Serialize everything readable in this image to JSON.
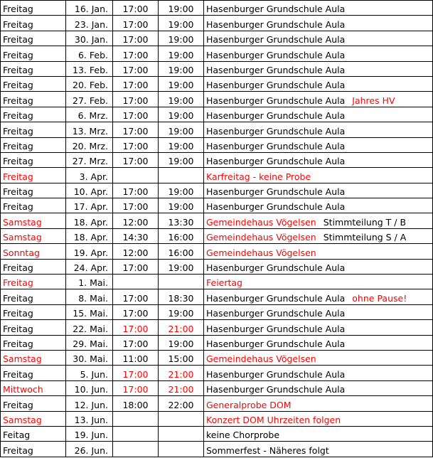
{
  "colors": {
    "highlight": "#ff0000",
    "text": "#000000",
    "border": "#000000"
  },
  "rows": [
    {
      "day": "Freitag",
      "date": "16. Jan.",
      "start": "17:00",
      "end": "19:00",
      "info": "Hasenburger Grundschule Aula"
    },
    {
      "day": "Freitag",
      "date": "23. Jan.",
      "start": "17:00",
      "end": "19:00",
      "info": "Hasenburger Grundschule Aula"
    },
    {
      "day": "Freitag",
      "date": "30. Jan.",
      "start": "17:00",
      "end": "19:00",
      "info": "Hasenburger Grundschule Aula"
    },
    {
      "day": "Freitag",
      "date": "6. Feb.",
      "start": "17:00",
      "end": "19:00",
      "info": "Hasenburger Grundschule Aula"
    },
    {
      "day": "Freitag",
      "date": "13. Feb.",
      "start": "17:00",
      "end": "19:00",
      "info": "Hasenburger Grundschule Aula"
    },
    {
      "day": "Freitag",
      "date": "20. Feb.",
      "start": "17:00",
      "end": "19:00",
      "info": "Hasenburger Grundschule Aula"
    },
    {
      "day": "Freitag",
      "date": "27. Feb.",
      "start": "17:00",
      "end": "19:00",
      "info": "Hasenburger Grundschule Aula",
      "note": "Jahres HV",
      "note_red": true
    },
    {
      "day": "Freitag",
      "date": "6. Mrz.",
      "start": "17:00",
      "end": "19:00",
      "info": "Hasenburger Grundschule Aula"
    },
    {
      "day": "Freitag",
      "date": "13. Mrz.",
      "start": "17:00",
      "end": "19:00",
      "info": "Hasenburger Grundschule Aula"
    },
    {
      "day": "Freitag",
      "date": "20. Mrz.",
      "start": "17:00",
      "end": "19:00",
      "info": "Hasenburger Grundschule Aula"
    },
    {
      "day": "Freitag",
      "date": "27. Mrz.",
      "start": "17:00",
      "end": "19:00",
      "info": "Hasenburger Grundschule Aula"
    },
    {
      "day": "Freitag",
      "day_red": true,
      "date": "3. Apr.",
      "start": "",
      "end": "",
      "info": "Karfreitag - keine Probe",
      "info_red": true
    },
    {
      "day": "Freitag",
      "date": "10. Apr.",
      "start": "17:00",
      "end": "19:00",
      "info": "Hasenburger Grundschule Aula"
    },
    {
      "day": "Freitag",
      "date": "17. Apr.",
      "start": "17:00",
      "end": "19:00",
      "info": "Hasenburger Grundschule Aula"
    },
    {
      "day": "Samstag",
      "day_red": true,
      "date": "18. Apr.",
      "start": "12:00",
      "end": "13:30",
      "info": "Gemeindehaus Vögelsen",
      "info_red": true,
      "note": "Stimmteilung  T / B"
    },
    {
      "day": "Samstag",
      "day_red": true,
      "date": "18. Apr.",
      "start": "14:30",
      "end": "16:00",
      "info": "Gemeindehaus Vögelsen",
      "info_red": true,
      "note": "Stimmteilung  S / A"
    },
    {
      "day": "Sonntag",
      "day_red": true,
      "date": "19. Apr.",
      "start": "12:00",
      "end": "16:00",
      "info": "Gemeindehaus Vögelsen",
      "info_red": true
    },
    {
      "day": "Freitag",
      "date": "24. Apr.",
      "start": "17:00",
      "end": "19:00",
      "info": "Hasenburger Grundschule Aula"
    },
    {
      "day": "Freitag",
      "day_red": true,
      "date": "1. Mai.",
      "start": "",
      "end": "",
      "info": "Feiertag",
      "info_red": true
    },
    {
      "day": "Freitag",
      "date": "8. Mai.",
      "start": "17:00",
      "end": "18:30",
      "info": "Hasenburger Grundschule Aula",
      "note": "ohne Pause!",
      "note_red": true
    },
    {
      "day": "Freitag",
      "date": "15. Mai.",
      "start": "17:00",
      "end": "19:00",
      "info": "Hasenburger Grundschule Aula"
    },
    {
      "day": "Freitag",
      "date": "22. Mai.",
      "start": "17:00",
      "start_red": true,
      "end": "21:00",
      "end_red": true,
      "info": "Hasenburger Grundschule Aula"
    },
    {
      "day": "Freitag",
      "date": "29. Mai.",
      "start": "17:00",
      "end": "19:00",
      "info": "Hasenburger Grundschule Aula"
    },
    {
      "day": "Samstag",
      "day_red": true,
      "date": "30. Mai.",
      "start": "11:00",
      "end": "15:00",
      "info": "Gemeindehaus Vögelsen",
      "info_red": true
    },
    {
      "day": "Freitag",
      "date": "5. Jun.",
      "start": "17:00",
      "start_red": true,
      "end": "21:00",
      "end_red": true,
      "info": "Hasenburger Grundschule Aula"
    },
    {
      "day": "Mittwoch",
      "day_red": true,
      "date": "10. Jun.",
      "start": "17:00",
      "start_red": true,
      "end": "21:00",
      "end_red": true,
      "info": "Hasenburger Grundschule Aula"
    },
    {
      "day": "Freitag",
      "date": "12. Jun.",
      "start": "18:00",
      "end": "22:00",
      "info": "Generalprobe DOM",
      "info_red": true
    },
    {
      "day": "Samstag",
      "day_red": true,
      "date": "13. Jun.",
      "start": "",
      "end": "",
      "info": "Konzert DOM  Uhrzeiten folgen",
      "info_red": true
    },
    {
      "day": "Feitag",
      "date": "19. Jun.",
      "start": "",
      "end": "",
      "info": "keine Chorprobe"
    },
    {
      "day": "Freitag",
      "date": "26. Jun.",
      "start": "",
      "end": "",
      "info": "Sommerfest - Näheres folgt"
    }
  ]
}
